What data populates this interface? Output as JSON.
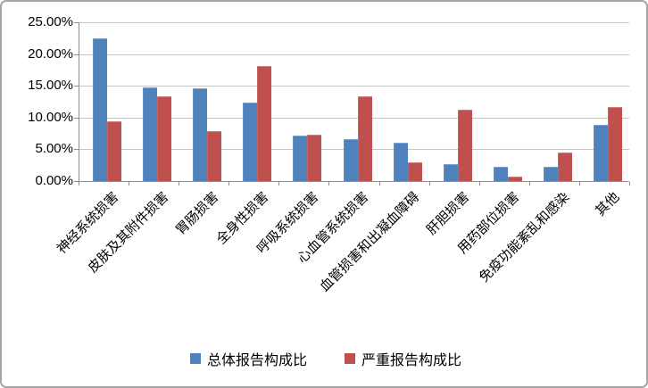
{
  "chart_data": {
    "type": "bar",
    "title": "",
    "xlabel": "",
    "ylabel": "",
    "categories": [
      "神经系统损害",
      "皮肤及其附件损害",
      "胃肠损害",
      "全身性损害",
      "呼吸系统损害",
      "心血管系统损害",
      "血管损害和出凝血障碍",
      "肝胆损害",
      "用药部位损害",
      "免疫功能紊乱和感染",
      "其他"
    ],
    "series": [
      {
        "name": "总体报告构成比",
        "color": "#4F81BD",
        "values": [
          22.5,
          14.7,
          14.6,
          12.4,
          7.1,
          6.6,
          6.1,
          2.6,
          2.3,
          2.2,
          8.9
        ]
      },
      {
        "name": "严重报告构成比",
        "color": "#C0504D",
        "values": [
          9.4,
          13.3,
          7.8,
          18.1,
          7.3,
          13.4,
          3.0,
          11.2,
          0.7,
          4.5,
          11.6
        ]
      }
    ],
    "ylim": [
      0,
      25
    ],
    "ytick_step": 5,
    "ytick_labels": [
      "0.00%",
      "5.00%",
      "10.00%",
      "15.00%",
      "20.00%",
      "25.00%"
    ],
    "grid": true,
    "legend_position": "bottom",
    "bar_orientation": "vertical"
  },
  "style": {
    "gridline_color": "#C6C6C6",
    "axis_color": "#8E8E8E",
    "text_color": "#000000",
    "background_color": "#FFFFFF",
    "border_color": "#A6A6A6"
  }
}
